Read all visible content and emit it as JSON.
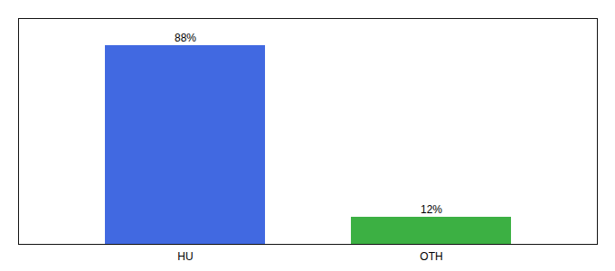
{
  "chart_data": {
    "type": "bar",
    "categories": [
      "HU",
      "OTH"
    ],
    "values": [
      88,
      12
    ],
    "value_labels": [
      "88%",
      "12%"
    ],
    "colors": [
      "#4169e1",
      "#3cb043"
    ],
    "data_labels": true,
    "ylim": [
      0,
      100
    ],
    "tick_labels": "x",
    "grid": false
  }
}
